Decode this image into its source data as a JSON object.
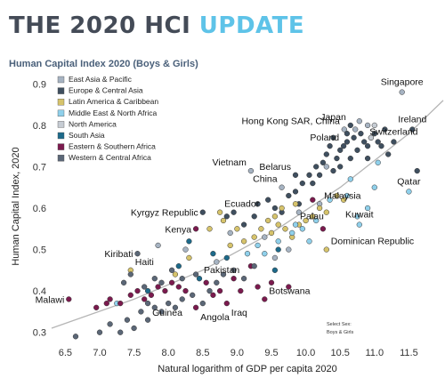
{
  "header": {
    "title_part1": "THE 2020 HCI ",
    "title_part2": "UPDATE",
    "subtitle": "Human Capital Index 2020 (Boys & Girls)"
  },
  "colors": {
    "title_dark": "#444b57",
    "title_accent": "#5ec3e8",
    "trendline": "#b5b5b5"
  },
  "select_note": {
    "line1": "Select Sex:",
    "line2": "Boys & Girls"
  },
  "chart_data": {
    "type": "scatter",
    "title": "Human Capital Index 2020 (Boys & Girls)",
    "xlabel": "Natural logarithm of GDP per capita 2020",
    "ylabel": "Human Capital Index, 2020",
    "xlim": [
      6.3,
      12.0
    ],
    "ylim": [
      0.28,
      0.92
    ],
    "xticks": [
      6.5,
      7.0,
      7.5,
      8.0,
      8.5,
      9.0,
      9.5,
      10.0,
      10.5,
      11.0,
      11.5
    ],
    "yticks": [
      0.3,
      0.4,
      0.5,
      0.6,
      0.7,
      0.8,
      0.9
    ],
    "grid": false,
    "legend_position": "top-left",
    "trendline": {
      "type": "quadratic fit",
      "points": [
        [
          6.3,
          0.31
        ],
        [
          7.5,
          0.38
        ],
        [
          8.5,
          0.45
        ],
        [
          9.5,
          0.54
        ],
        [
          10.5,
          0.65
        ],
        [
          11.5,
          0.78
        ],
        [
          12.0,
          0.86
        ]
      ]
    },
    "series": [
      {
        "name": "East Asia & Pacific",
        "color": "#a6b3c2",
        "points": [
          [
            11.4,
            0.88,
            "Singapore"
          ],
          [
            10.78,
            0.81
          ],
          [
            10.56,
            0.79,
            "Hong Kong SAR, China"
          ],
          [
            10.72,
            0.79
          ],
          [
            10.9,
            0.8
          ],
          [
            9.2,
            0.69,
            "Vietnam"
          ],
          [
            9.65,
            0.65,
            "China"
          ],
          [
            10.2,
            0.61,
            "Malaysia"
          ],
          [
            8.25,
            0.5
          ],
          [
            7.85,
            0.51
          ],
          [
            8.7,
            0.47
          ],
          [
            9.4,
            0.53
          ],
          [
            9.55,
            0.48
          ],
          [
            8.9,
            0.54
          ],
          [
            9.9,
            0.59
          ],
          [
            10.3,
            0.7
          ],
          [
            9.75,
            0.5
          ]
        ]
      },
      {
        "name": "Europe & Central Asia",
        "color": "#3f4f5f",
        "points": [
          [
            10.65,
            0.8,
            "Japan"
          ],
          [
            10.55,
            0.75,
            "Poland"
          ],
          [
            9.85,
            0.68,
            "Belarus"
          ],
          [
            8.5,
            0.59,
            "Kyrgyz Republic"
          ],
          [
            11.55,
            0.79,
            "Ireland"
          ],
          [
            11.62,
            0.69
          ],
          [
            11.28,
            0.76,
            "Switzerland"
          ],
          [
            10.4,
            0.77
          ],
          [
            10.5,
            0.74
          ],
          [
            10.6,
            0.76
          ],
          [
            10.7,
            0.77
          ],
          [
            10.8,
            0.78
          ],
          [
            10.85,
            0.76
          ],
          [
            10.9,
            0.75
          ],
          [
            10.95,
            0.77
          ],
          [
            11.0,
            0.78
          ],
          [
            11.05,
            0.76
          ],
          [
            11.1,
            0.75
          ],
          [
            10.45,
            0.72
          ],
          [
            10.35,
            0.75
          ],
          [
            10.3,
            0.73
          ],
          [
            10.25,
            0.71
          ],
          [
            10.15,
            0.7
          ],
          [
            10.05,
            0.68
          ],
          [
            9.95,
            0.66
          ],
          [
            9.85,
            0.64
          ],
          [
            9.75,
            0.63
          ],
          [
            9.45,
            0.62
          ],
          [
            9.55,
            0.6
          ],
          [
            9.3,
            0.61
          ],
          [
            9.25,
            0.58
          ],
          [
            9.1,
            0.56
          ],
          [
            8.95,
            0.59
          ],
          [
            8.85,
            0.58
          ],
          [
            10.5,
            0.7
          ],
          [
            10.65,
            0.72
          ],
          [
            10.75,
            0.74
          ],
          [
            10.9,
            0.72
          ],
          [
            11.2,
            0.73
          ],
          [
            10.6,
            0.78
          ],
          [
            10.2,
            0.68
          ],
          [
            9.9,
            0.61
          ],
          [
            9.65,
            0.59
          ],
          [
            10.1,
            0.66
          ],
          [
            10.4,
            0.69
          ],
          [
            11.15,
            0.79
          ]
        ]
      },
      {
        "name": "Latin America & Caribbean",
        "color": "#d6c36b",
        "points": [
          [
            8.75,
            0.59,
            "Ecuador"
          ],
          [
            7.45,
            0.45,
            "Haiti"
          ],
          [
            10.3,
            0.5,
            "Dominican Republic"
          ],
          [
            9.6,
            0.56
          ],
          [
            9.55,
            0.58
          ],
          [
            9.7,
            0.55
          ],
          [
            9.8,
            0.53
          ],
          [
            9.9,
            0.56
          ],
          [
            10.0,
            0.57
          ],
          [
            10.1,
            0.58
          ],
          [
            10.2,
            0.6
          ],
          [
            10.3,
            0.59
          ],
          [
            9.5,
            0.54
          ],
          [
            9.35,
            0.55
          ],
          [
            9.25,
            0.53
          ],
          [
            9.1,
            0.52
          ],
          [
            9.0,
            0.55
          ],
          [
            8.6,
            0.55
          ],
          [
            8.9,
            0.51
          ],
          [
            9.65,
            0.6
          ],
          [
            9.85,
            0.61
          ],
          [
            10.45,
            0.63
          ],
          [
            10.55,
            0.62
          ],
          [
            9.45,
            0.57
          ],
          [
            8.8,
            0.57
          ],
          [
            8.3,
            0.48
          ],
          [
            8.1,
            0.44
          ]
        ]
      },
      {
        "name": "Middle East & North Africa",
        "color": "#8fd0eb",
        "points": [
          [
            10.78,
            0.56,
            "Kuwait"
          ],
          [
            11.5,
            0.64,
            "Qatar"
          ],
          [
            9.85,
            0.56,
            "Palau"
          ],
          [
            10.75,
            0.58
          ],
          [
            10.9,
            0.6
          ],
          [
            11.0,
            0.65
          ],
          [
            10.65,
            0.67
          ],
          [
            10.35,
            0.62
          ],
          [
            9.6,
            0.52
          ],
          [
            9.4,
            0.49
          ],
          [
            9.3,
            0.51
          ],
          [
            9.15,
            0.49
          ],
          [
            9.8,
            0.54
          ],
          [
            9.95,
            0.55
          ],
          [
            10.15,
            0.57
          ],
          [
            10.05,
            0.52
          ],
          [
            11.05,
            0.71
          ],
          [
            7.25,
            0.37
          ],
          [
            10.6,
            0.63
          ]
        ]
      },
      {
        "name": "North America",
        "color": "#c6ccd3",
        "points": [
          [
            11.0,
            0.8
          ],
          [
            10.95,
            0.77
          ]
        ]
      },
      {
        "name": "South Asia",
        "color": "#1d6a8a",
        "points": [
          [
            8.45,
            0.43,
            "Pakistan"
          ],
          [
            8.15,
            0.46
          ],
          [
            8.65,
            0.49
          ],
          [
            8.85,
            0.48
          ],
          [
            9.6,
            0.5
          ],
          [
            9.55,
            0.45
          ],
          [
            8.3,
            0.52
          ],
          [
            7.7,
            0.4
          ]
        ]
      },
      {
        "name": "Eastern & Southern Africa",
        "color": "#7b1a4e",
        "points": [
          [
            6.55,
            0.38,
            "Malawi"
          ],
          [
            8.4,
            0.55,
            "Kenya"
          ],
          [
            8.85,
            0.37,
            "Iraq"
          ],
          [
            9.4,
            0.38,
            "Botswana"
          ],
          [
            8.4,
            0.36,
            "Angola"
          ],
          [
            6.95,
            0.36
          ],
          [
            7.1,
            0.37
          ],
          [
            7.15,
            0.38
          ],
          [
            7.3,
            0.37
          ],
          [
            7.45,
            0.39
          ],
          [
            7.55,
            0.4
          ],
          [
            7.65,
            0.38
          ],
          [
            7.75,
            0.39
          ],
          [
            7.85,
            0.41
          ],
          [
            7.95,
            0.4
          ],
          [
            8.05,
            0.42
          ],
          [
            8.15,
            0.41
          ],
          [
            8.25,
            0.4
          ],
          [
            8.55,
            0.42
          ],
          [
            8.65,
            0.39
          ],
          [
            8.75,
            0.4
          ],
          [
            8.95,
            0.43
          ],
          [
            9.05,
            0.4
          ],
          [
            9.2,
            0.46
          ],
          [
            9.3,
            0.41
          ],
          [
            9.5,
            0.42
          ],
          [
            9.75,
            0.41
          ],
          [
            10.1,
            0.62
          ],
          [
            10.25,
            0.55
          ]
        ]
      },
      {
        "name": "Western & Central Africa",
        "color": "#5b6777",
        "points": [
          [
            7.55,
            0.49,
            "Kiribati"
          ],
          [
            7.7,
            0.37,
            "Guinea"
          ],
          [
            6.65,
            0.29
          ],
          [
            7.0,
            0.3
          ],
          [
            7.15,
            0.32
          ],
          [
            7.3,
            0.3
          ],
          [
            7.4,
            0.33
          ],
          [
            7.5,
            0.31
          ],
          [
            7.6,
            0.35
          ],
          [
            7.7,
            0.33
          ],
          [
            7.8,
            0.36
          ],
          [
            7.9,
            0.35
          ],
          [
            8.0,
            0.37
          ],
          [
            8.1,
            0.36
          ],
          [
            8.2,
            0.38
          ],
          [
            8.35,
            0.39
          ],
          [
            8.5,
            0.37
          ],
          [
            8.6,
            0.4
          ],
          [
            8.7,
            0.42
          ],
          [
            8.8,
            0.44
          ],
          [
            8.95,
            0.45
          ],
          [
            9.1,
            0.43
          ],
          [
            9.25,
            0.46
          ],
          [
            7.35,
            0.42
          ],
          [
            7.45,
            0.44
          ],
          [
            7.65,
            0.41
          ],
          [
            7.8,
            0.43
          ],
          [
            7.9,
            0.42
          ],
          [
            8.05,
            0.45
          ],
          [
            8.2,
            0.43
          ],
          [
            8.4,
            0.44
          ]
        ]
      }
    ]
  }
}
